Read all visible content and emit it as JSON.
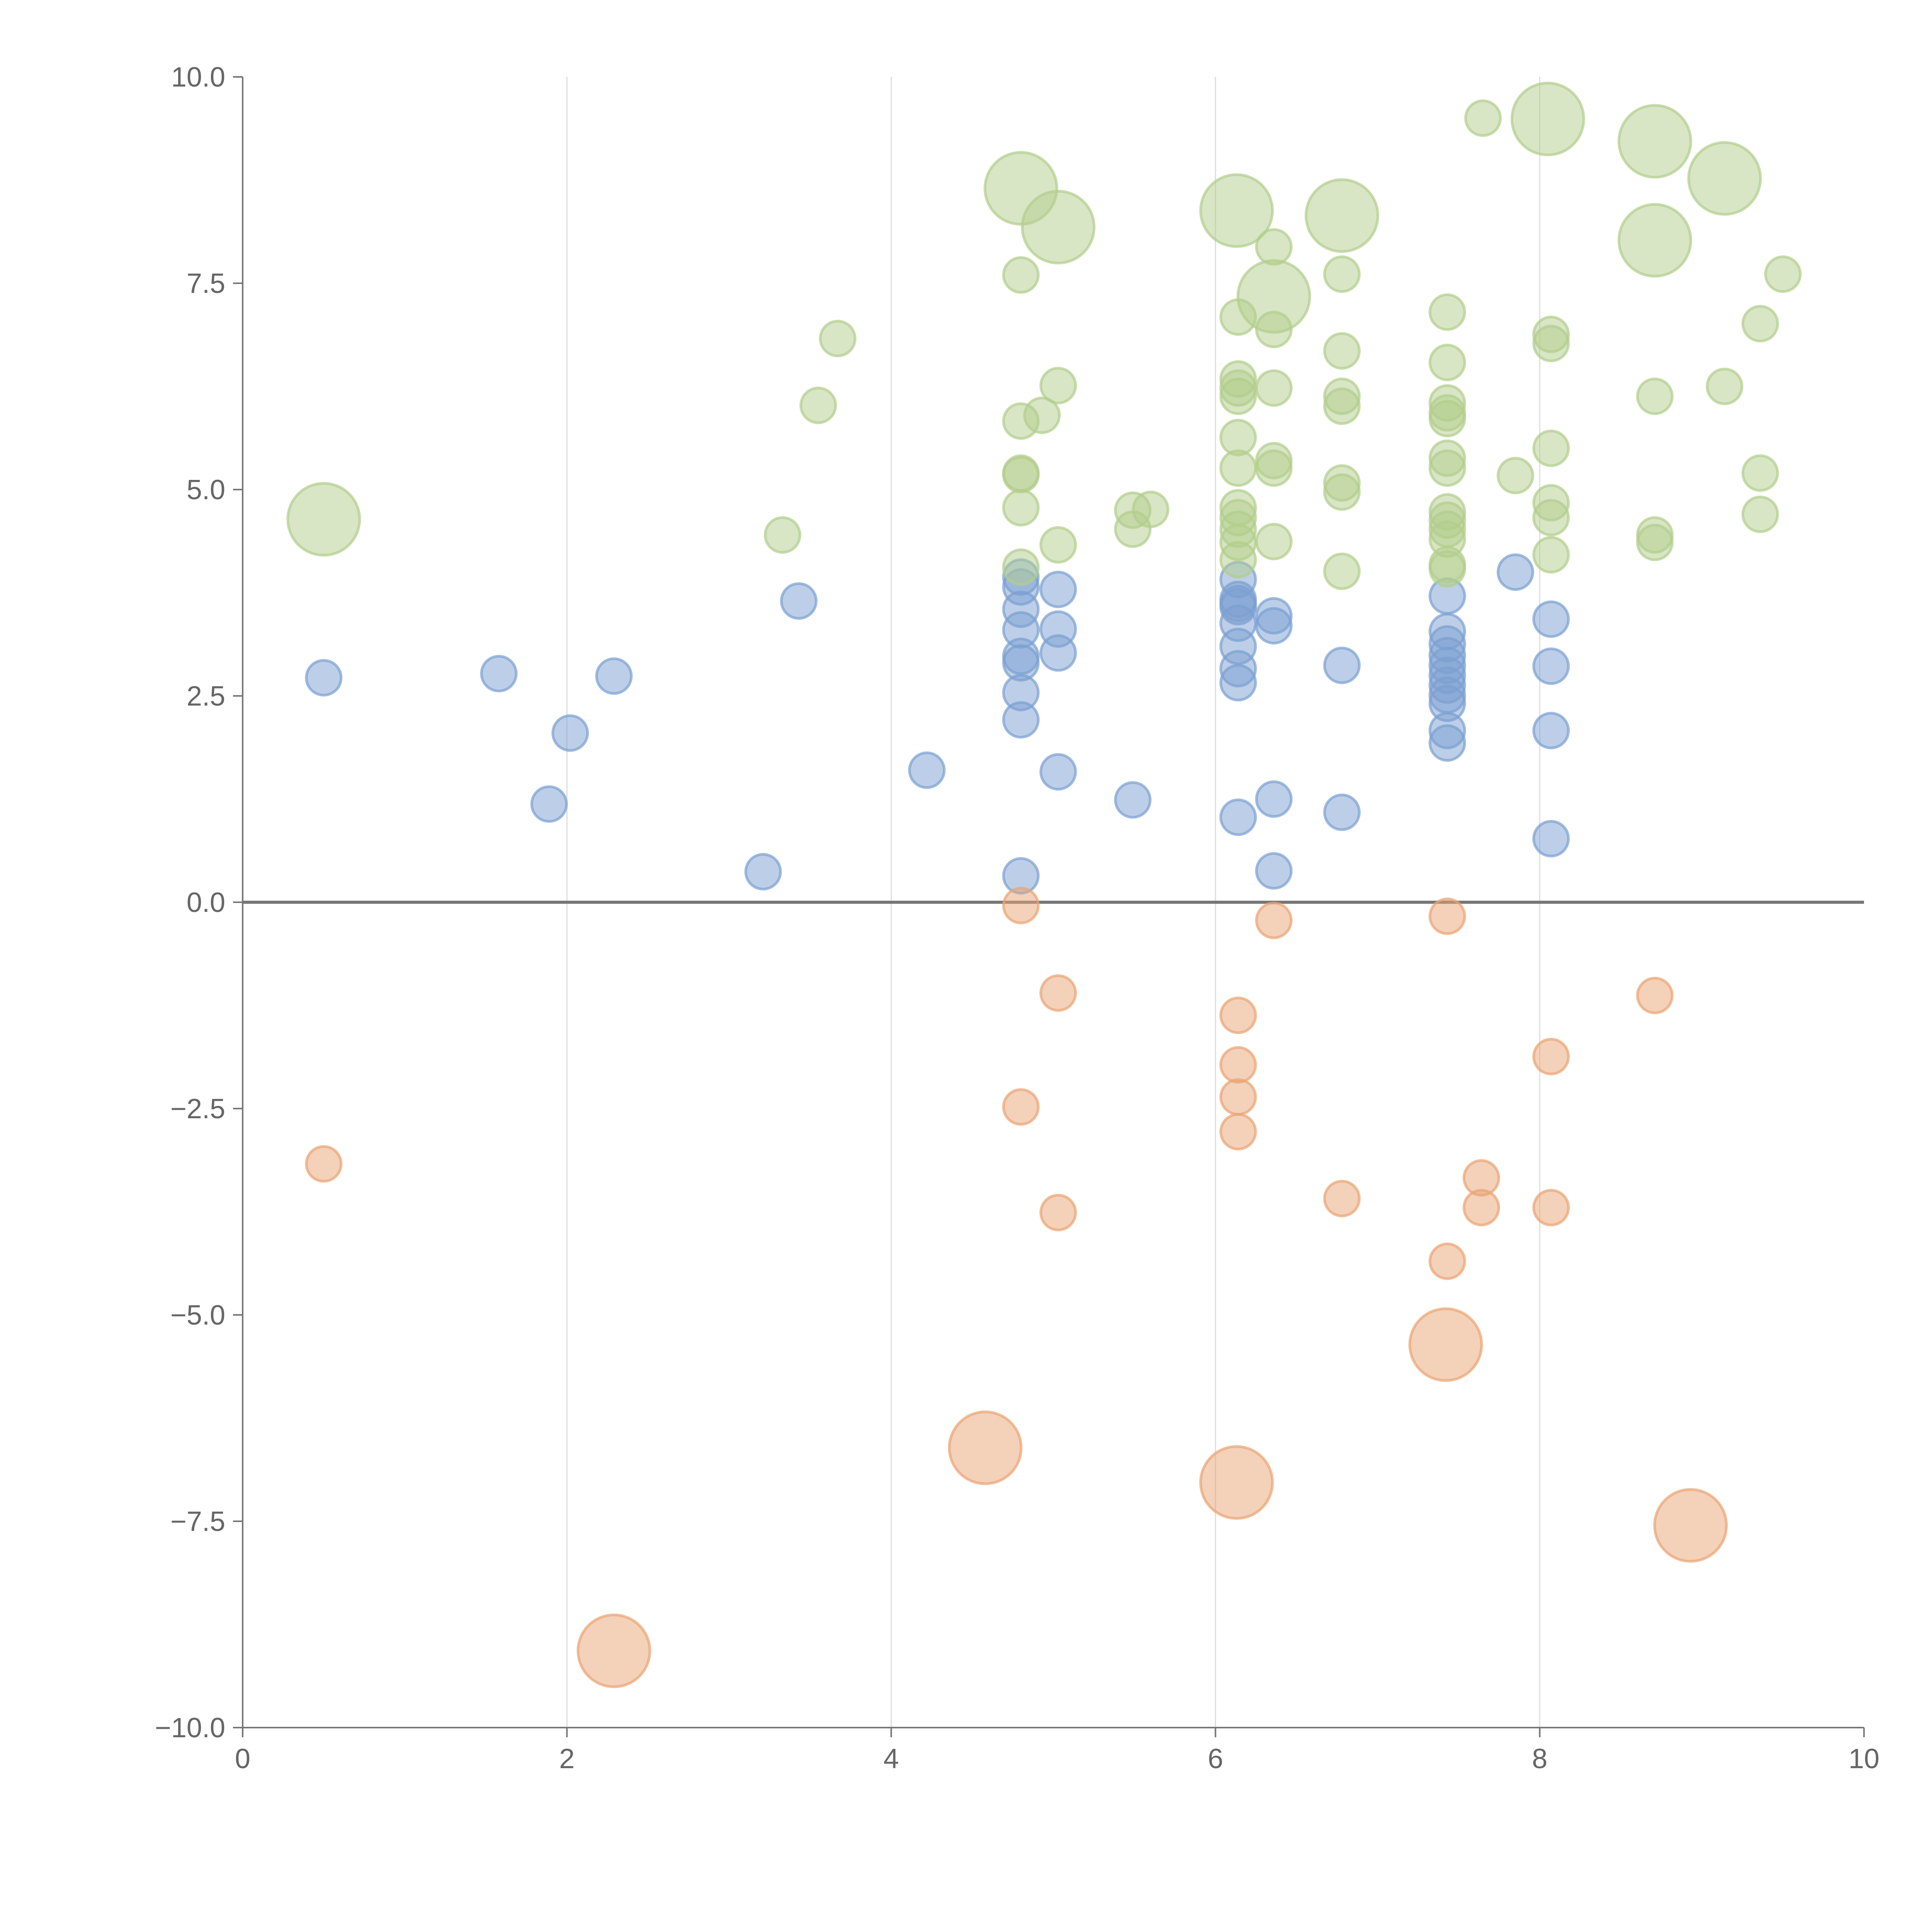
{
  "chart_data": {
    "type": "scatter",
    "title": "",
    "xlabel": "",
    "ylabel": "",
    "xlim": [
      0,
      10
    ],
    "ylim": [
      -10,
      10
    ],
    "x_ticks": [
      0,
      2,
      4,
      6,
      8,
      10
    ],
    "x_tick_labels": [
      "0",
      "2",
      "4",
      "6",
      "8",
      "10"
    ],
    "y_ticks": [
      -10,
      -7.5,
      -5,
      -2.5,
      0,
      2.5,
      5,
      7.5,
      10
    ],
    "y_tick_labels": [
      "−10.0",
      "−7.5",
      "−5.0",
      "−2.5",
      "0.0",
      "2.5",
      "5.0",
      "7.5",
      "10.0"
    ],
    "grid": "vertical",
    "zero_line": true,
    "point_format": "[x, y, size]",
    "series": [
      {
        "name": "blue",
        "color": "#7b9fd1",
        "points": [
          [
            0.5,
            2.72,
            1
          ],
          [
            1.58,
            2.77,
            1
          ],
          [
            2.02,
            2.05,
            1
          ],
          [
            2.29,
            2.74,
            1
          ],
          [
            1.89,
            1.19,
            1
          ],
          [
            3.21,
            0.37,
            1
          ],
          [
            3.43,
            3.65,
            1
          ],
          [
            4.22,
            1.6,
            1
          ],
          [
            4.8,
            3.94,
            1
          ],
          [
            4.8,
            3.82,
            1
          ],
          [
            4.8,
            3.55,
            1
          ],
          [
            4.8,
            3.3,
            1
          ],
          [
            4.8,
            2.98,
            1
          ],
          [
            4.8,
            2.9,
            1
          ],
          [
            4.8,
            2.54,
            1
          ],
          [
            4.8,
            2.21,
            1
          ],
          [
            4.8,
            0.32,
            1
          ],
          [
            5.03,
            3.79,
            1
          ],
          [
            5.03,
            3.31,
            1
          ],
          [
            5.03,
            3.02,
            1
          ],
          [
            5.03,
            1.58,
            1
          ],
          [
            5.49,
            1.24,
            1
          ],
          [
            6.14,
            3.91,
            1
          ],
          [
            6.14,
            3.67,
            1
          ],
          [
            6.14,
            3.62,
            1
          ],
          [
            6.14,
            3.58,
            1
          ],
          [
            6.14,
            3.38,
            1
          ],
          [
            6.14,
            3.1,
            1
          ],
          [
            6.14,
            2.83,
            1
          ],
          [
            6.14,
            2.66,
            1
          ],
          [
            6.14,
            1.03,
            1
          ],
          [
            6.36,
            3.47,
            1
          ],
          [
            6.36,
            3.35,
            1
          ],
          [
            6.36,
            1.25,
            1
          ],
          [
            6.36,
            0.38,
            1
          ],
          [
            6.78,
            2.87,
            1
          ],
          [
            6.78,
            1.09,
            1
          ],
          [
            7.43,
            3.71,
            1
          ],
          [
            7.43,
            3.28,
            1
          ],
          [
            7.43,
            3.13,
            1
          ],
          [
            7.43,
            2.99,
            1
          ],
          [
            7.43,
            2.87,
            1
          ],
          [
            7.43,
            2.75,
            1
          ],
          [
            7.43,
            2.63,
            1
          ],
          [
            7.43,
            2.51,
            1
          ],
          [
            7.43,
            2.41,
            1
          ],
          [
            7.43,
            2.08,
            1
          ],
          [
            7.43,
            1.93,
            1
          ],
          [
            7.85,
            4.0,
            1
          ],
          [
            8.07,
            3.43,
            1
          ],
          [
            8.07,
            2.86,
            1
          ],
          [
            8.07,
            2.08,
            1
          ],
          [
            8.07,
            0.77,
            1
          ]
        ]
      },
      {
        "name": "orange",
        "color": "#e9a474",
        "points": [
          [
            0.5,
            -3.17,
            1
          ],
          [
            2.29,
            -9.07,
            2
          ],
          [
            4.58,
            -6.61,
            2
          ],
          [
            4.8,
            -0.04,
            1
          ],
          [
            4.8,
            -2.48,
            1
          ],
          [
            5.03,
            -1.1,
            1
          ],
          [
            5.03,
            -3.76,
            1
          ],
          [
            6.13,
            -7.03,
            2
          ],
          [
            6.14,
            -1.37,
            1
          ],
          [
            6.14,
            -1.97,
            1
          ],
          [
            6.14,
            -2.36,
            1
          ],
          [
            6.14,
            -2.78,
            1
          ],
          [
            6.36,
            -0.22,
            1
          ],
          [
            6.78,
            -3.59,
            1
          ],
          [
            7.43,
            -0.17,
            1
          ],
          [
            7.43,
            -4.35,
            1
          ],
          [
            7.42,
            -5.36,
            2
          ],
          [
            7.64,
            -3.34,
            1
          ],
          [
            7.64,
            -3.7,
            1
          ],
          [
            8.07,
            -1.87,
            1
          ],
          [
            8.07,
            -3.7,
            1
          ],
          [
            8.71,
            -1.13,
            1
          ],
          [
            8.93,
            -7.55,
            2
          ]
        ]
      },
      {
        "name": "green",
        "color": "#b2cd8b",
        "points": [
          [
            0.5,
            4.64,
            2
          ],
          [
            3.33,
            4.45,
            1
          ],
          [
            3.55,
            6.02,
            1
          ],
          [
            3.67,
            6.83,
            1
          ],
          [
            4.8,
            8.65,
            2
          ],
          [
            5.03,
            8.18,
            2
          ],
          [
            4.8,
            7.6,
            1
          ],
          [
            5.03,
            6.26,
            1
          ],
          [
            4.8,
            5.83,
            1
          ],
          [
            4.93,
            5.9,
            1
          ],
          [
            4.8,
            5.2,
            1
          ],
          [
            4.8,
            5.18,
            1
          ],
          [
            4.8,
            4.78,
            1
          ],
          [
            4.8,
            4.06,
            1
          ],
          [
            5.03,
            4.33,
            1
          ],
          [
            5.49,
            4.75,
            1
          ],
          [
            5.49,
            4.52,
            1
          ],
          [
            5.6,
            4.76,
            1
          ],
          [
            6.13,
            8.38,
            2
          ],
          [
            6.36,
            7.34,
            2
          ],
          [
            6.36,
            7.94,
            1
          ],
          [
            6.14,
            7.09,
            1
          ],
          [
            6.36,
            6.94,
            1
          ],
          [
            6.14,
            6.34,
            1
          ],
          [
            6.14,
            6.23,
            1
          ],
          [
            6.14,
            6.13,
            1
          ],
          [
            6.14,
            5.63,
            1
          ],
          [
            6.14,
            5.26,
            1
          ],
          [
            6.14,
            4.78,
            1
          ],
          [
            6.14,
            4.66,
            1
          ],
          [
            6.14,
            4.52,
            1
          ],
          [
            6.14,
            4.36,
            1
          ],
          [
            6.14,
            4.15,
            1
          ],
          [
            6.36,
            6.23,
            1
          ],
          [
            6.36,
            5.35,
            1
          ],
          [
            6.36,
            5.26,
            1
          ],
          [
            6.36,
            4.37,
            1
          ],
          [
            6.78,
            8.32,
            2
          ],
          [
            6.78,
            7.61,
            1
          ],
          [
            6.78,
            6.68,
            1
          ],
          [
            6.78,
            6.13,
            1
          ],
          [
            6.78,
            6.01,
            1
          ],
          [
            6.78,
            5.08,
            1
          ],
          [
            6.78,
            4.97,
            1
          ],
          [
            6.78,
            4.01,
            1
          ],
          [
            7.43,
            7.15,
            1
          ],
          [
            7.43,
            6.54,
            1
          ],
          [
            7.43,
            6.05,
            1
          ],
          [
            7.43,
            5.93,
            1
          ],
          [
            7.43,
            5.86,
            1
          ],
          [
            7.43,
            5.38,
            1
          ],
          [
            7.43,
            5.26,
            1
          ],
          [
            7.43,
            4.73,
            1
          ],
          [
            7.43,
            4.63,
            1
          ],
          [
            7.43,
            4.52,
            1
          ],
          [
            7.43,
            4.4,
            1
          ],
          [
            7.43,
            4.09,
            1
          ],
          [
            7.43,
            4.04,
            1
          ],
          [
            7.65,
            9.5,
            1
          ],
          [
            8.05,
            9.49,
            2
          ],
          [
            7.85,
            5.17,
            1
          ],
          [
            8.07,
            6.88,
            1
          ],
          [
            8.07,
            6.77,
            1
          ],
          [
            8.07,
            5.5,
            1
          ],
          [
            8.07,
            4.84,
            1
          ],
          [
            8.07,
            4.66,
            1
          ],
          [
            8.07,
            4.21,
            1
          ],
          [
            8.71,
            9.22,
            2
          ],
          [
            9.14,
            8.77,
            2
          ],
          [
            8.71,
            8.02,
            2
          ],
          [
            9.5,
            7.61,
            1
          ],
          [
            9.36,
            7.01,
            1
          ],
          [
            8.71,
            6.13,
            1
          ],
          [
            9.14,
            6.25,
            1
          ],
          [
            9.36,
            5.2,
            1
          ],
          [
            9.36,
            4.7,
            1
          ],
          [
            8.71,
            4.45,
            1
          ],
          [
            8.71,
            4.36,
            1
          ]
        ]
      }
    ]
  }
}
